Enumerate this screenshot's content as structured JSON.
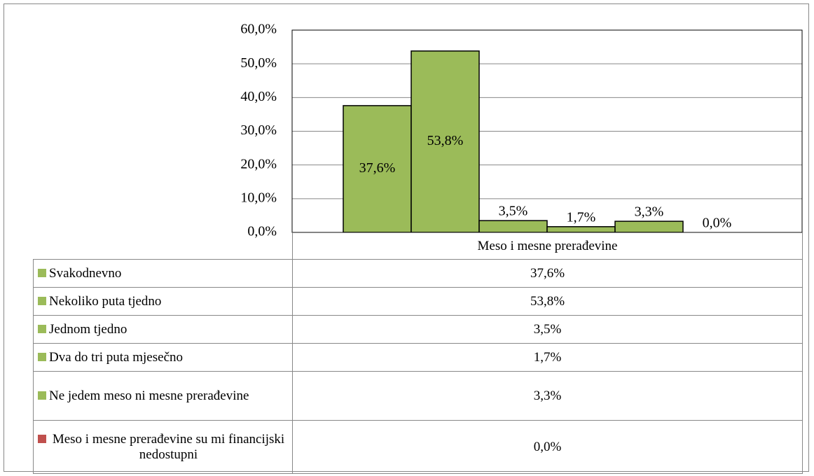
{
  "chart_data": {
    "type": "bar",
    "categories": [
      "Meso i mesne prerađevine"
    ],
    "series": [
      {
        "name": "Svakodnevno",
        "color": "#9bbb59",
        "values": [
          37.6
        ],
        "value_labels": [
          "37,6%"
        ]
      },
      {
        "name": "Nekoliko puta tjedno",
        "color": "#9bbb59",
        "values": [
          53.8
        ],
        "value_labels": [
          "53,8%"
        ]
      },
      {
        "name": "Jednom tjedno",
        "color": "#9bbb59",
        "values": [
          3.5
        ],
        "value_labels": [
          "3,5%"
        ]
      },
      {
        "name": "Dva do tri puta mjesečno",
        "color": "#9bbb59",
        "values": [
          1.7
        ],
        "value_labels": [
          "1,7%"
        ]
      },
      {
        "name": "Ne jedem meso ni mesne prerađevine",
        "color": "#9bbb59",
        "values": [
          3.3
        ],
        "value_labels": [
          "3,3%"
        ]
      },
      {
        "name": "Meso i mesne prerađevine su mi financijski nedostupni",
        "color": "#c0504d",
        "values": [
          0.0
        ],
        "value_labels": [
          "0,0%"
        ]
      }
    ],
    "ylim": [
      0,
      60
    ],
    "yticks": [
      {
        "value": 0,
        "label": "0,0%"
      },
      {
        "value": 10,
        "label": "10,0%"
      },
      {
        "value": 20,
        "label": "20,0%"
      },
      {
        "value": 30,
        "label": "30,0%"
      },
      {
        "value": 40,
        "label": "40,0%"
      },
      {
        "value": 50,
        "label": "50,0%"
      },
      {
        "value": 60,
        "label": "60,0%"
      }
    ],
    "grid": true,
    "data_table": true
  }
}
